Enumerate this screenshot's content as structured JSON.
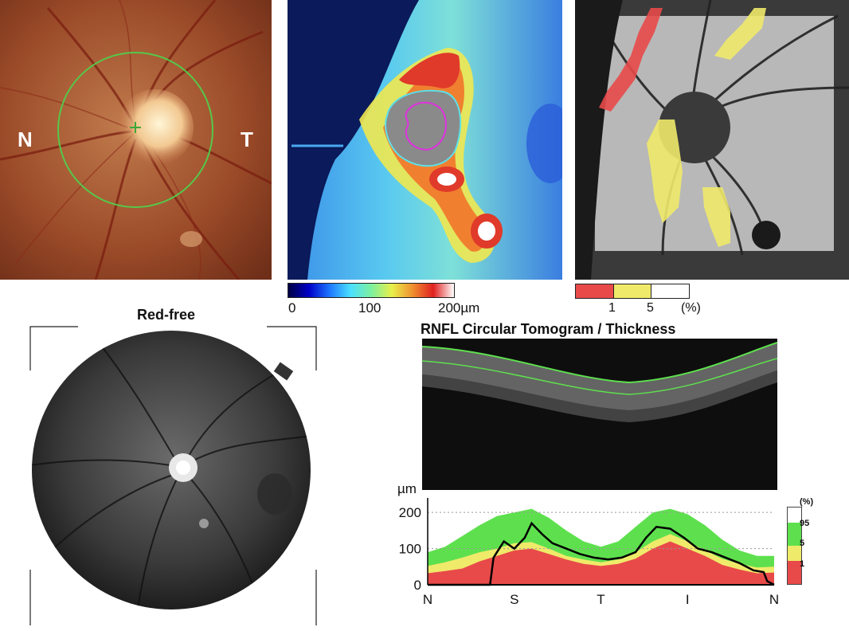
{
  "fundus_photo": {
    "nasal_label": "N",
    "temporal_label": "T"
  },
  "thickness_map": {
    "colorbar_ticks": [
      "0",
      "100",
      "200µm"
    ]
  },
  "deviation_map": {
    "legend_ticks": [
      "1",
      "5",
      "(%)"
    ],
    "colors": {
      "red": "#e84a4a",
      "yellow": "#f0ea6a",
      "white": "#ffffff"
    }
  },
  "red_free": {
    "title": "Red-free"
  },
  "rnfl": {
    "title": "RNFL Circular Tomogram / Thickness"
  },
  "chart_data": {
    "type": "area",
    "ylabel": "µm",
    "ylim": [
      0,
      240
    ],
    "y_ticks": [
      "0",
      "100",
      "200"
    ],
    "x_tick_labels": [
      "N",
      "S",
      "T",
      "I",
      "N"
    ],
    "x_range": [
      0,
      100
    ],
    "legend_title": "(%)",
    "legend_labels": [
      "95",
      "5",
      "1"
    ],
    "colors": {
      "green": "#5ee04e",
      "yellow": "#f0ea6a",
      "red": "#e84a4a",
      "measured": "#000000"
    },
    "series": [
      {
        "name": "95",
        "x": [
          0,
          5,
          10,
          15,
          20,
          25,
          30,
          35,
          40,
          45,
          50,
          55,
          60,
          65,
          70,
          75,
          80,
          85,
          90,
          95,
          100
        ],
        "values": [
          90,
          105,
          135,
          165,
          190,
          200,
          210,
          185,
          150,
          120,
          105,
          120,
          160,
          200,
          210,
          195,
          165,
          125,
          95,
          80,
          80
        ]
      },
      {
        "name": "5",
        "x": [
          0,
          5,
          10,
          15,
          20,
          25,
          30,
          35,
          40,
          45,
          50,
          55,
          60,
          65,
          70,
          75,
          80,
          85,
          90,
          95,
          100
        ],
        "values": [
          52,
          62,
          75,
          90,
          100,
          115,
          118,
          100,
          80,
          70,
          62,
          70,
          90,
          120,
          140,
          120,
          95,
          72,
          58,
          48,
          50
        ]
      },
      {
        "name": "1",
        "x": [
          0,
          5,
          10,
          15,
          20,
          25,
          30,
          35,
          40,
          45,
          50,
          55,
          60,
          65,
          70,
          75,
          80,
          85,
          90,
          95,
          100
        ],
        "values": [
          32,
          38,
          45,
          65,
          80,
          95,
          100,
          85,
          70,
          58,
          52,
          58,
          72,
          100,
          120,
          100,
          80,
          55,
          42,
          32,
          34
        ]
      },
      {
        "x": [
          0,
          5,
          10,
          15,
          18,
          19,
          20,
          22,
          25,
          28,
          30,
          33,
          36,
          40,
          44,
          48,
          52,
          56,
          60,
          63,
          66,
          70,
          74,
          78,
          82,
          86,
          90,
          94,
          97,
          98,
          100
        ],
        "values": [
          0,
          0,
          0,
          0,
          0,
          75,
          90,
          120,
          100,
          130,
          170,
          140,
          115,
          100,
          85,
          75,
          70,
          75,
          90,
          130,
          160,
          155,
          130,
          100,
          90,
          75,
          60,
          40,
          35,
          10,
          0
        ]
      }
    ]
  }
}
